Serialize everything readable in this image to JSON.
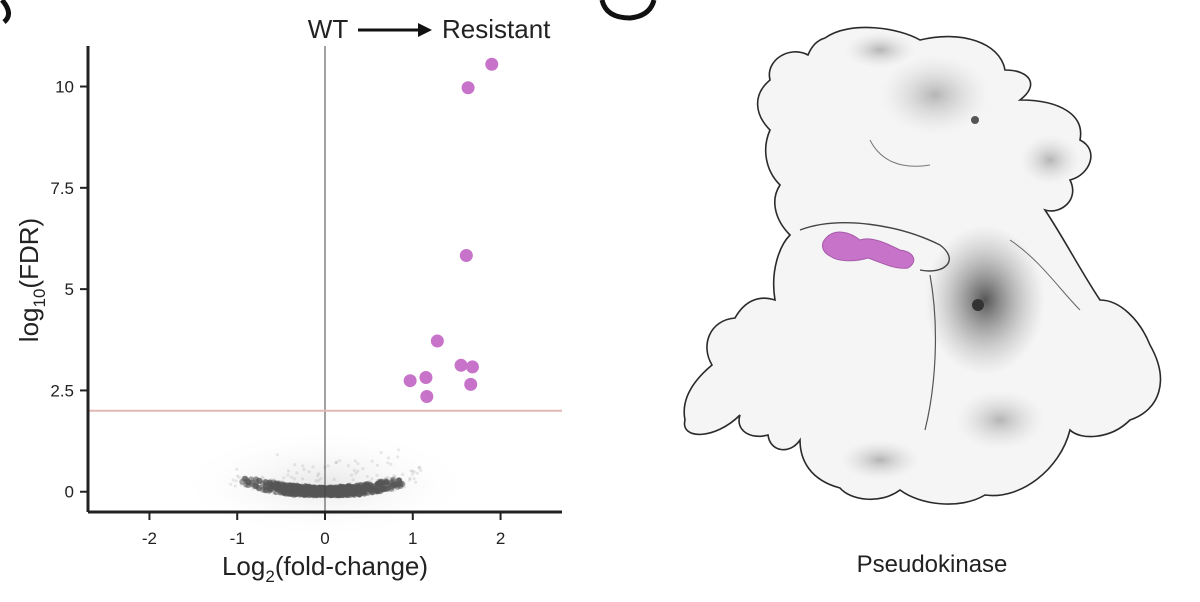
{
  "panel_left": {
    "annotation": {
      "from": "WT",
      "to": "Resistant"
    },
    "xlabel_parts": [
      "Log",
      "2",
      "(fold-change)"
    ],
    "ylabel_parts": [
      "log",
      "10",
      "(FDR)"
    ]
  },
  "panel_right": {
    "caption": "Pseudokinase"
  },
  "colors": {
    "highlight": "#c773c9",
    "background_points": "#555555",
    "threshold_line": "#e0b8b4",
    "axis": "#222222"
  },
  "chart_data": {
    "type": "scatter",
    "title": "",
    "xlabel": "Log2(fold-change)",
    "ylabel": "log10(FDR)",
    "xlim": [
      -2.7,
      2.7
    ],
    "ylim": [
      -0.5,
      11.0
    ],
    "xticks": [
      -2,
      -1,
      0,
      1,
      2
    ],
    "xtick_labels": [
      "-2",
      "-1",
      "0",
      "1",
      "2"
    ],
    "yticks": [
      0,
      2.5,
      5,
      7.5,
      10
    ],
    "ytick_labels": [
      "0",
      "2.5",
      "5",
      "7.5",
      "10"
    ],
    "threshold_y": 2.0,
    "vline_x": 0,
    "grid": false,
    "series": [
      {
        "role": "significant",
        "color": "#c773c9",
        "points": [
          {
            "x": 1.9,
            "y": 10.55
          },
          {
            "x": 1.63,
            "y": 9.97
          },
          {
            "x": 1.61,
            "y": 5.83
          },
          {
            "x": 1.28,
            "y": 3.72
          },
          {
            "x": 1.55,
            "y": 3.12
          },
          {
            "x": 1.68,
            "y": 3.08
          },
          {
            "x": 0.97,
            "y": 2.74
          },
          {
            "x": 1.15,
            "y": 2.82
          },
          {
            "x": 1.66,
            "y": 2.65
          },
          {
            "x": 1.16,
            "y": 2.35
          }
        ]
      },
      {
        "role": "not-significant",
        "color": "#555555",
        "shape": "dense cloud following y ≈ 0.35·x² near the origin, spread over x ≈ -1.2 to 1.2"
      }
    ]
  }
}
